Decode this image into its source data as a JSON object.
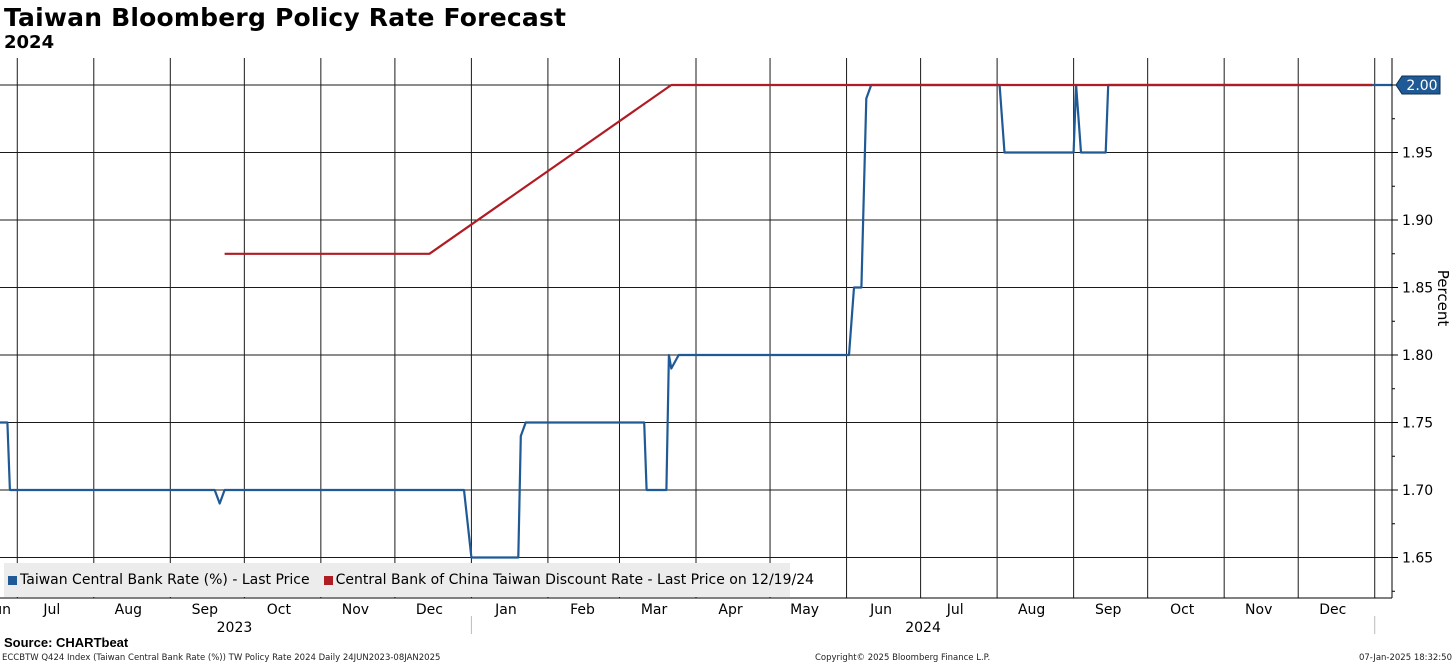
{
  "header": {
    "title": "Taiwan Bloomberg Policy Rate Forecast",
    "subtitle": "2024"
  },
  "legend": {
    "items": [
      {
        "label": "Taiwan Central Bank Rate (%) - Last Price",
        "color": "#1f5a96"
      },
      {
        "label": "Central Bank of China Taiwan Discount Rate - Last Price on 12/19/24",
        "color": "#b01c24"
      }
    ]
  },
  "footer": {
    "source": "Source: CHARTbeat",
    "left": "ECCBTW Q424 Index (Taiwan Central Bank Rate (%)) TW Policy Rate 2024  Daily 24JUN2023-08JAN2025",
    "middle": "Copyright© 2025 Bloomberg Finance L.P.",
    "right": "07-Jan-2025 18:32:50"
  },
  "chart_data": {
    "type": "line",
    "title": "Taiwan Bloomberg Policy Rate Forecast",
    "subtitle": "2024",
    "ylabel": "Percent",
    "ylim": [
      1.62,
      2.02
    ],
    "xlim": [
      "2023-06-24",
      "2025-01-08"
    ],
    "yticks": [
      1.65,
      1.7,
      1.75,
      1.8,
      1.85,
      1.9,
      1.95,
      2.0
    ],
    "ytick_labels": [
      "1.65",
      "1.70",
      "1.75",
      "1.80",
      "1.85",
      "1.90",
      "1.95",
      "2.00"
    ],
    "month_ticks": [
      {
        "date": "2023-06-24",
        "label": "Jun"
      },
      {
        "date": "2023-07-15",
        "label": "Jul"
      },
      {
        "date": "2023-08-15",
        "label": "Aug"
      },
      {
        "date": "2023-09-15",
        "label": "Sep"
      },
      {
        "date": "2023-10-15",
        "label": "Oct"
      },
      {
        "date": "2023-11-15",
        "label": "Nov"
      },
      {
        "date": "2023-12-15",
        "label": "Dec"
      },
      {
        "date": "2024-01-15",
        "label": "Jan"
      },
      {
        "date": "2024-02-15",
        "label": "Feb"
      },
      {
        "date": "2024-03-15",
        "label": "Mar"
      },
      {
        "date": "2024-04-15",
        "label": "Apr"
      },
      {
        "date": "2024-05-15",
        "label": "May"
      },
      {
        "date": "2024-06-15",
        "label": "Jun"
      },
      {
        "date": "2024-07-15",
        "label": "Jul"
      },
      {
        "date": "2024-08-15",
        "label": "Aug"
      },
      {
        "date": "2024-09-15",
        "label": "Sep"
      },
      {
        "date": "2024-10-15",
        "label": "Oct"
      },
      {
        "date": "2024-11-15",
        "label": "Nov"
      },
      {
        "date": "2024-12-15",
        "label": "Dec"
      }
    ],
    "gridlines": [
      "2023-07-01",
      "2023-08-01",
      "2023-09-01",
      "2023-10-01",
      "2023-11-01",
      "2023-12-01",
      "2024-01-01",
      "2024-02-01",
      "2024-03-01",
      "2024-04-01",
      "2024-05-01",
      "2024-06-01",
      "2024-07-01",
      "2024-08-01",
      "2024-09-01",
      "2024-10-01",
      "2024-11-01",
      "2024-12-01",
      "2025-01-01"
    ],
    "year_labels": [
      {
        "label": "2023",
        "center": "2023-09-27"
      },
      {
        "label": "2024",
        "center": "2024-07-02"
      }
    ],
    "year_separators": [
      "2024-01-01",
      "2025-01-01"
    ],
    "last_value": {
      "label": "2.00",
      "value": 2.0
    },
    "grid": true,
    "legend_position": "bottom-left",
    "series": [
      {
        "name": "Taiwan Central Bank Rate (%) - Last Price",
        "color": "#1f5a96",
        "points": [
          [
            "2023-06-24",
            1.75
          ],
          [
            "2023-06-27",
            1.75
          ],
          [
            "2023-06-28",
            1.7
          ],
          [
            "2023-09-19",
            1.7
          ],
          [
            "2023-09-21",
            1.69
          ],
          [
            "2023-09-23",
            1.7
          ],
          [
            "2023-12-28",
            1.7
          ],
          [
            "2023-12-29",
            1.7
          ],
          [
            "2024-01-01",
            1.65
          ],
          [
            "2024-01-20",
            1.65
          ],
          [
            "2024-01-21",
            1.74
          ],
          [
            "2024-01-23",
            1.75
          ],
          [
            "2024-03-11",
            1.75
          ],
          [
            "2024-03-12",
            1.7
          ],
          [
            "2024-03-20",
            1.7
          ],
          [
            "2024-03-21",
            1.8
          ],
          [
            "2024-03-22",
            1.79
          ],
          [
            "2024-03-25",
            1.8
          ],
          [
            "2024-06-02",
            1.8
          ],
          [
            "2024-06-04",
            1.85
          ],
          [
            "2024-06-07",
            1.85
          ],
          [
            "2024-06-09",
            1.99
          ],
          [
            "2024-06-11",
            2.0
          ],
          [
            "2024-08-02",
            2.0
          ],
          [
            "2024-08-04",
            1.95
          ],
          [
            "2024-09-01",
            1.95
          ],
          [
            "2024-09-02",
            2.0
          ],
          [
            "2024-09-04",
            1.95
          ],
          [
            "2024-09-14",
            1.95
          ],
          [
            "2024-09-15",
            2.0
          ],
          [
            "2025-01-08",
            2.0
          ]
        ]
      },
      {
        "name": "Central Bank of China Taiwan Discount Rate - Last Price on 12/19/24",
        "color": "#b01c24",
        "points": [
          [
            "2023-09-23",
            1.875
          ],
          [
            "2023-12-15",
            1.875
          ],
          [
            "2024-03-22",
            2.0
          ],
          [
            "2024-12-31",
            2.0
          ]
        ]
      }
    ]
  }
}
